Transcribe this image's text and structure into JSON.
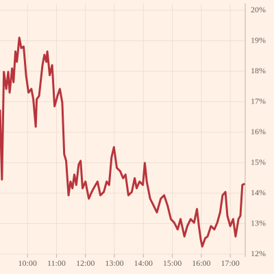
{
  "chart_data": {
    "type": "line",
    "x": [
      "09:03",
      "09:07",
      "09:11",
      "09:16",
      "09:20",
      "09:23",
      "09:28",
      "09:31",
      "09:35",
      "09:38",
      "09:43",
      "09:47",
      "09:52",
      "09:57",
      "10:02",
      "10:08",
      "10:12",
      "10:17",
      "10:19",
      "10:24",
      "10:31",
      "10:35",
      "10:39",
      "10:41",
      "10:46",
      "10:51",
      "10:56",
      "11:02",
      "11:07",
      "11:12",
      "11:16",
      "11:20",
      "11:25",
      "11:29",
      "11:33",
      "11:37",
      "11:41",
      "11:46",
      "11:50",
      "11:54",
      "12:00",
      "12:07",
      "12:13",
      "12:17",
      "12:25",
      "12:31",
      "12:38",
      "12:44",
      "12:49",
      "12:54",
      "12:59",
      "13:05",
      "13:12",
      "13:18",
      "13:23",
      "13:29",
      "13:36",
      "13:42",
      "13:46",
      "13:52",
      "13:59",
      "14:03",
      "14:07",
      "14:14",
      "14:21",
      "14:28",
      "14:36",
      "14:43",
      "14:50",
      "14:57",
      "15:04",
      "15:11",
      "15:17",
      "15:25",
      "15:31",
      "15:38",
      "15:45",
      "15:51",
      "15:55",
      "15:59",
      "16:02",
      "16:08",
      "16:13",
      "16:20",
      "16:27",
      "16:33",
      "16:39",
      "16:44",
      "16:50",
      "16:54",
      "17:00",
      "17:06",
      "17:11",
      "17:17",
      "17:21",
      "17:25",
      "17:30"
    ],
    "series": [
      {
        "color": "#b8343c",
        "values": [
          16.74,
          14.45,
          17.98,
          17.42,
          17.98,
          17.3,
          18.09,
          17.64,
          18.65,
          18.31,
          19.1,
          18.76,
          18.81,
          17.87,
          17.3,
          17.42,
          17.08,
          16.18,
          17.08,
          17.19,
          18.2,
          18.54,
          18.31,
          18.65,
          17.87,
          18.2,
          16.85,
          17.19,
          17.42,
          16.97,
          15.28,
          15.06,
          13.93,
          14.38,
          14.16,
          14.61,
          14.27,
          14.94,
          15.06,
          14.16,
          14.38,
          13.82,
          14.04,
          14.16,
          14.38,
          13.93,
          14.04,
          14.38,
          14.27,
          15.17,
          15.51,
          14.83,
          14.72,
          14.49,
          14.61,
          13.93,
          14.04,
          14.49,
          14.16,
          14.38,
          14.27,
          14.99,
          14.38,
          13.82,
          13.6,
          13.37,
          13.82,
          13.93,
          13.6,
          13.15,
          13.03,
          12.81,
          13.15,
          12.58,
          12.92,
          13.15,
          13.03,
          13.48,
          12.92,
          12.47,
          12.25,
          12.52,
          12.58,
          12.92,
          12.81,
          13.03,
          13.37,
          13.93,
          14.04,
          13.26,
          12.92,
          13.15,
          12.58,
          13.15,
          13.26,
          14.27,
          14.31
        ]
      }
    ],
    "xlim": [
      "09:03",
      "17:31"
    ],
    "xticks": [
      "10:00",
      "11:00",
      "12:00",
      "13:00",
      "14:00",
      "15:00",
      "16:00",
      "17:00"
    ],
    "ylim": [
      12,
      20
    ],
    "yticks": [
      {
        "value": 12,
        "label": "12%"
      },
      {
        "value": 13,
        "label": "13%"
      },
      {
        "value": 14,
        "label": "14%"
      },
      {
        "value": 15,
        "label": "15%"
      },
      {
        "value": 16,
        "label": "16%"
      },
      {
        "value": 17,
        "label": "17%"
      },
      {
        "value": 18,
        "label": "18%"
      },
      {
        "value": 19,
        "label": "19%"
      },
      {
        "value": 20,
        "label": "20%"
      }
    ],
    "grid": true
  }
}
